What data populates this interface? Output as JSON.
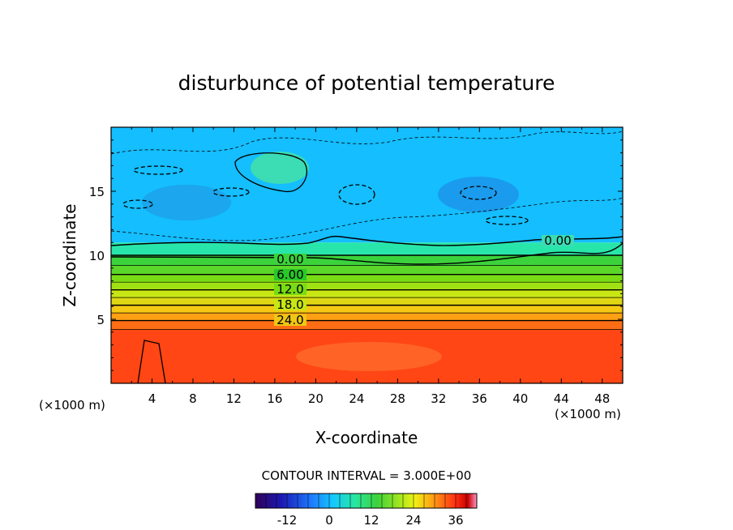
{
  "chart_data": {
    "type": "contour",
    "title": "disturbunce of potential temperature",
    "xlabel": "X-coordinate",
    "ylabel": "Z-coordinate",
    "x_unit_left": "(×1000 m)",
    "x_unit_right": "(×1000 m)",
    "xlim": [
      0,
      50
    ],
    "ylim": [
      0,
      20
    ],
    "x_ticks": [
      "4",
      "8",
      "12",
      "16",
      "20",
      "24",
      "28",
      "32",
      "36",
      "40",
      "44",
      "48"
    ],
    "y_ticks": [
      "5",
      "10",
      "15"
    ],
    "contour_labels": [
      "0.00",
      "0.00",
      "6.00",
      "12.0",
      "18.0",
      "24.0"
    ],
    "contour_interval_text": "CONTOUR INTERVAL = 3.000E+00",
    "colorbar": {
      "min": -21,
      "max": 42,
      "ticks": [
        "-12",
        "0",
        "12",
        "24",
        "36"
      ]
    },
    "bands": [
      {
        "z": 0.0,
        "value": 30
      },
      {
        "z": 4.2,
        "value": 27
      },
      {
        "z": 4.9,
        "value": 24
      },
      {
        "z": 5.5,
        "value": 21
      },
      {
        "z": 6.1,
        "value": 18
      },
      {
        "z": 6.7,
        "value": 15
      },
      {
        "z": 7.3,
        "value": 12
      },
      {
        "z": 7.9,
        "value": 9
      },
      {
        "z": 8.5,
        "value": 6
      },
      {
        "z": 9.2,
        "value": 3
      },
      {
        "z": 10.0,
        "value": 0
      },
      {
        "z": 11.0,
        "value": -3
      },
      {
        "z": 20.0,
        "value": -6
      }
    ]
  }
}
